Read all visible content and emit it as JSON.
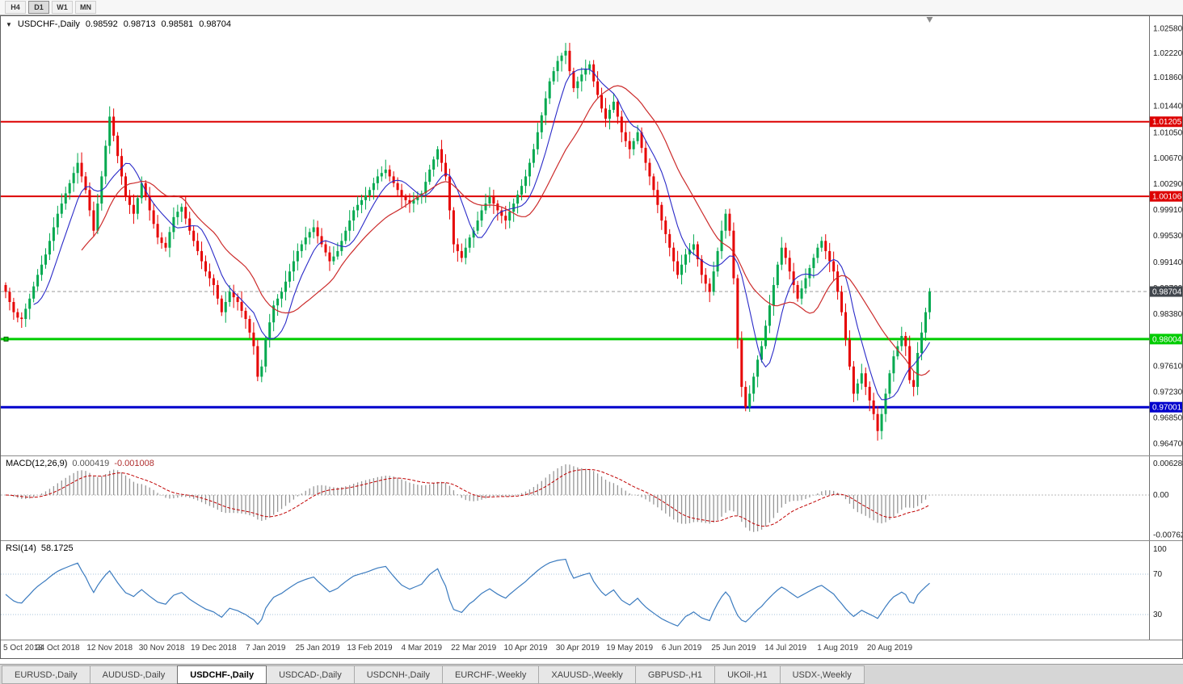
{
  "toolbar": {
    "timeframes": [
      {
        "label": "H4",
        "active": false
      },
      {
        "label": "D1",
        "active": true
      },
      {
        "label": "W1",
        "active": false
      },
      {
        "label": "MN",
        "active": false
      }
    ]
  },
  "chart": {
    "title_text": "USDCHF-,Daily",
    "ohlc": {
      "open": "0.98592",
      "high": "0.98713",
      "low": "0.98581",
      "close": "0.98704"
    },
    "colors": {
      "up": "#00A94F",
      "down": "#E60000",
      "ma_fast": "#2A2AC8",
      "ma_slow": "#CC2B2B",
      "res_line": "#DD0000",
      "sup_green": "#00CC00",
      "sup_blue": "#0000CC",
      "price_badge_bg": "#41464D",
      "macd_hist": "#969696",
      "macd_signal": "#C00000",
      "rsi_line": "#3B7BBF",
      "rsi_level": "#A6C0DA",
      "axis_border": "#707070"
    },
    "price_axis": {
      "pmax": 1.0276,
      "pmin": 0.9629,
      "ticks": [
        "1.02580",
        "1.02220",
        "1.01860",
        "1.01440",
        "1.01050",
        "1.00670",
        "1.00290",
        "0.99910",
        "0.99530",
        "0.99140",
        "0.98760",
        "0.98380",
        "0.97610",
        "0.97230",
        "0.96850",
        "0.96470"
      ]
    },
    "hlines": [
      {
        "value": 1.01205,
        "label": "1.01205",
        "color": "#DD0000",
        "width": 2,
        "handles": false
      },
      {
        "value": 1.00106,
        "label": "1.00106",
        "color": "#DD0000",
        "width": 2,
        "handles": false
      },
      {
        "value": 0.98004,
        "label": "0.98004",
        "color": "#00CC00",
        "width": 3,
        "handles": true
      },
      {
        "value": 0.97001,
        "label": "0.97001",
        "color": "#0000CC",
        "width": 3,
        "handles": false
      }
    ],
    "current_price": {
      "value": 0.98704,
      "label": "0.98704"
    }
  },
  "macd_panel": {
    "label": "MACD(12,26,9)",
    "value_main": "0.000419",
    "value_signal": "-0.001008",
    "axis": [
      "0.006286",
      "0.00",
      "-0.00762"
    ]
  },
  "rsi_panel": {
    "label": "RSI(14)",
    "value": "58.1725",
    "axis": [
      "100",
      "70",
      "30"
    ],
    "levels": [
      70,
      30
    ]
  },
  "dates": [
    "5 Oct 2018",
    "24 Oct 2018",
    "12 Nov 2018",
    "30 Nov 2018",
    "19 Dec 2018",
    "7 Jan 2019",
    "25 Jan 2019",
    "13 Feb 2019",
    "4 Mar 2019",
    "22 Mar 2019",
    "10 Apr 2019",
    "30 Apr 2019",
    "19 May 2019",
    "6 Jun 2019",
    "25 Jun 2019",
    "14 Jul 2019",
    "1 Aug 2019",
    "20 Aug 2019"
  ],
  "chart_data": {
    "type": "candlestick",
    "symbol": "USDCHF",
    "timeframe": "Daily",
    "first_open": 0.988,
    "label_every": 13,
    "ma_fast_period": 8,
    "ma_slow_period": 20,
    "closes": [
      0.987,
      0.9855,
      0.984,
      0.9832,
      0.983,
      0.9845,
      0.986,
      0.9878,
      0.9895,
      0.991,
      0.9925,
      0.9945,
      0.9965,
      0.9985,
      1.0,
      1.0015,
      1.003,
      1.0045,
      1.006,
      1.004,
      1.002,
      0.999,
      0.996,
      1.0,
      1.004,
      1.0085,
      1.0128,
      1.01,
      1.007,
      1.004,
      1.001,
      0.9998,
      0.9985,
      1.0008,
      1.003,
      1.001,
      0.999,
      0.997,
      0.995,
      0.9942,
      0.9935,
      0.9958,
      0.998,
      0.9988,
      0.9995,
      0.9978,
      0.996,
      0.9945,
      0.993,
      0.9915,
      0.99,
      0.989,
      0.988,
      0.986,
      0.984,
      0.9855,
      0.987,
      0.9862,
      0.9855,
      0.9842,
      0.983,
      0.981,
      0.979,
      0.9745,
      0.976,
      0.98,
      0.9825,
      0.985,
      0.986,
      0.987,
      0.9885,
      0.99,
      0.9915,
      0.993,
      0.994,
      0.995,
      0.9958,
      0.9965,
      0.9952,
      0.994,
      0.9928,
      0.9915,
      0.9922,
      0.993,
      0.9945,
      0.996,
      0.9975,
      0.999,
      0.9998,
      1.0005,
      1.0012,
      1.002,
      1.003,
      1.004,
      1.0045,
      1.005,
      1.004,
      1.003,
      1.002,
      1.001,
      1.0005,
      1.0,
      1.0005,
      1.001,
      1.0015,
      1.0032,
      1.005,
      1.0065,
      1.008,
      1.006,
      1.004,
      0.999,
      0.994,
      0.993,
      0.992,
      0.9935,
      0.995,
      0.996,
      0.9975,
      0.999,
      1.0,
      1.001,
      1.0,
      0.999,
      0.9982,
      0.9975,
      0.9988,
      1.0,
      1.0013,
      1.0026,
      1.004,
      1.006,
      1.008,
      1.0105,
      1.013,
      1.0155,
      1.018,
      1.0195,
      1.021,
      1.0218,
      1.0225,
      1.0195,
      1.017,
      1.018,
      1.019,
      1.0198,
      1.0205,
      1.018,
      1.016,
      1.014,
      1.0125,
      1.0138,
      1.015,
      1.0128,
      1.0105,
      1.0092,
      1.008,
      1.0092,
      1.0105,
      1.0082,
      1.006,
      1.004,
      1.002,
      0.9998,
      0.9975,
      0.9955,
      0.9935,
      0.9915,
      0.9895,
      0.991,
      0.9925,
      0.9932,
      0.994,
      0.9918,
      0.9895,
      0.9882,
      0.987,
      0.99,
      0.993,
      0.996,
      0.9985,
      0.996,
      0.989,
      0.98,
      0.973,
      0.97,
      0.972,
      0.9745,
      0.977,
      0.979,
      0.982,
      0.985,
      0.988,
      0.991,
      0.9935,
      0.992,
      0.99,
      0.988,
      0.986,
      0.9875,
      0.989,
      0.9905,
      0.992,
      0.9935,
      0.9945,
      0.993,
      0.9915,
      0.99,
      0.987,
      0.984,
      0.98,
      0.976,
      0.972,
      0.9735,
      0.975,
      0.973,
      0.971,
      0.969,
      0.9665,
      0.969,
      0.972,
      0.975,
      0.9775,
      0.979,
      0.9805,
      0.979,
      0.974,
      0.973,
      0.978,
      0.981,
      0.984,
      0.98704
    ]
  },
  "tabs": [
    {
      "label": "EURUSD-,Daily",
      "active": false
    },
    {
      "label": "AUDUSD-,Daily",
      "active": false
    },
    {
      "label": "USDCHF-,Daily",
      "active": true
    },
    {
      "label": "USDCAD-,Daily",
      "active": false
    },
    {
      "label": "USDCNH-,Daily",
      "active": false
    },
    {
      "label": "EURCHF-,Weekly",
      "active": false
    },
    {
      "label": "XAUUSD-,Weekly",
      "active": false
    },
    {
      "label": "GBPUSD-,H1",
      "active": false
    },
    {
      "label": "UKOil-,H1",
      "active": false
    },
    {
      "label": "USDX-,Weekly",
      "active": false
    }
  ]
}
